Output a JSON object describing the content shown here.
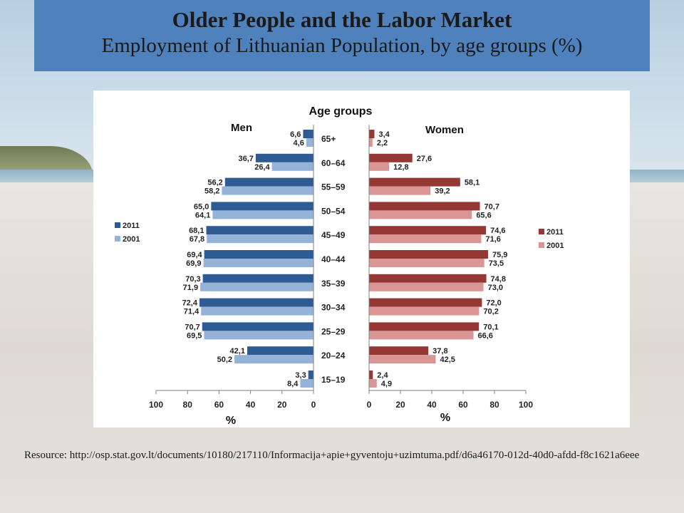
{
  "slide": {
    "title": "Older People and the Labor Market",
    "subtitle": "Employment of Lithuanian Population, by age groups (%)",
    "resource": "Resource: http://osp.stat.gov.lt/documents/10180/217110/Informacija+apie+gyventoju+uzimtuma.pdf/d6a46170-012d-40d0-afdd-f8c1621a6eee"
  },
  "chart_data": {
    "type": "bar",
    "orientation": "horizontal",
    "layout": "population-pyramid",
    "title": "Age groups",
    "categories": [
      "65+",
      "60–64",
      "55–59",
      "50–54",
      "45–49",
      "40–44",
      "35–39",
      "30–34",
      "25–29",
      "20–24",
      "15–19"
    ],
    "panels": [
      {
        "name": "Men",
        "direction": "left",
        "xlabel": "%",
        "xlim": [
          0,
          100
        ],
        "ticks": [
          "100",
          "80",
          "60",
          "40",
          "20",
          "0"
        ],
        "legend_position": "left",
        "series": [
          {
            "name": "2011",
            "color": "#2f5b93",
            "values": [
              6.6,
              36.7,
              56.2,
              65.0,
              68.1,
              69.4,
              70.3,
              72.4,
              70.7,
              42.1,
              3.3
            ],
            "labels": [
              "6,6",
              "36,7",
              "56,2",
              "65,0",
              "68,1",
              "69,4",
              "70,3",
              "72,4",
              "70,7",
              "42,1",
              "3,3"
            ]
          },
          {
            "name": "2001",
            "color": "#95b3d7",
            "values": [
              4.6,
              26.4,
              58.2,
              64.1,
              67.8,
              69.9,
              71.9,
              71.4,
              69.5,
              50.2,
              8.4
            ],
            "labels": [
              "4,6",
              "26,4",
              "58,2",
              "64,1",
              "67,8",
              "69,9",
              "71,9",
              "71,4",
              "69,5",
              "50,2",
              "8,4"
            ]
          }
        ]
      },
      {
        "name": "Women",
        "direction": "right",
        "xlabel": "%",
        "xlim": [
          0,
          100
        ],
        "ticks": [
          "0",
          "20",
          "40",
          "60",
          "80",
          "100"
        ],
        "legend_position": "right",
        "series": [
          {
            "name": "2011",
            "color": "#953735",
            "values": [
              3.4,
              27.6,
              58.1,
              70.7,
              74.6,
              75.9,
              74.8,
              72.0,
              70.1,
              37.8,
              2.4
            ],
            "labels": [
              "3,4",
              "27,6",
              "58,1",
              "70,7",
              "74,6",
              "75,9",
              "74,8",
              "72,0",
              "70,1",
              "37,8",
              "2,4"
            ]
          },
          {
            "name": "2001",
            "color": "#d99694",
            "values": [
              2.2,
              12.8,
              39.2,
              65.6,
              71.6,
              73.5,
              73.0,
              70.2,
              66.6,
              42.5,
              4.9
            ],
            "labels": [
              "2,2",
              "12,8",
              "39,2",
              "65,6",
              "71,6",
              "73,5",
              "73,0",
              "70,2",
              "66,6",
              "42,5",
              "4,9"
            ]
          }
        ]
      }
    ]
  }
}
